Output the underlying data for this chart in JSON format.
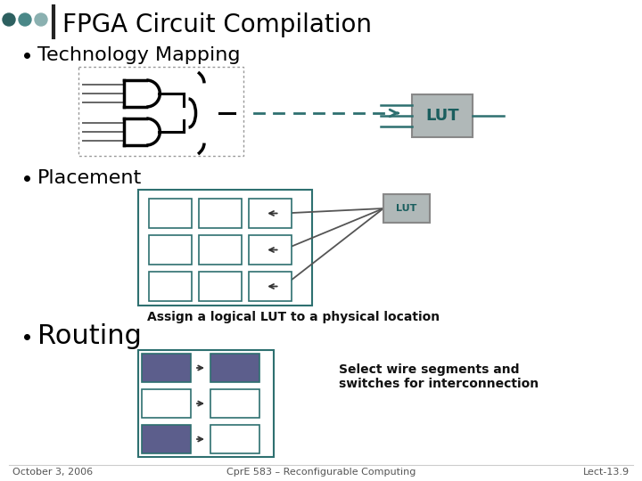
{
  "title": "FPGA Circuit Compilation",
  "bg_color": "#ffffff",
  "title_color": "#000000",
  "title_fontsize": 20,
  "bullet1": "Technology Mapping",
  "bullet2": "Placement",
  "bullet3": "Routing",
  "bullet_fontsize": 16,
  "lut_color": "#b0b8b8",
  "lut_text_color": "#1a5e5e",
  "teal_color": "#2e7070",
  "grid_color": "#2e7070",
  "dashed_color": "#2e7070",
  "footer_date": "October 3, 2006",
  "footer_center": "CprE 583 – Reconfigurable Computing",
  "footer_right": "Lect-13.9",
  "footer_fontsize": 8,
  "assign_text": "Assign a logical LUT to a physical location",
  "select_text": "Select wire segments and\nswitches for interconnection",
  "dot_colors": [
    "#2d6060",
    "#4a8888",
    "#8ab0b0"
  ],
  "purple_color": "#5c5e8c",
  "bar_color": "#222222"
}
